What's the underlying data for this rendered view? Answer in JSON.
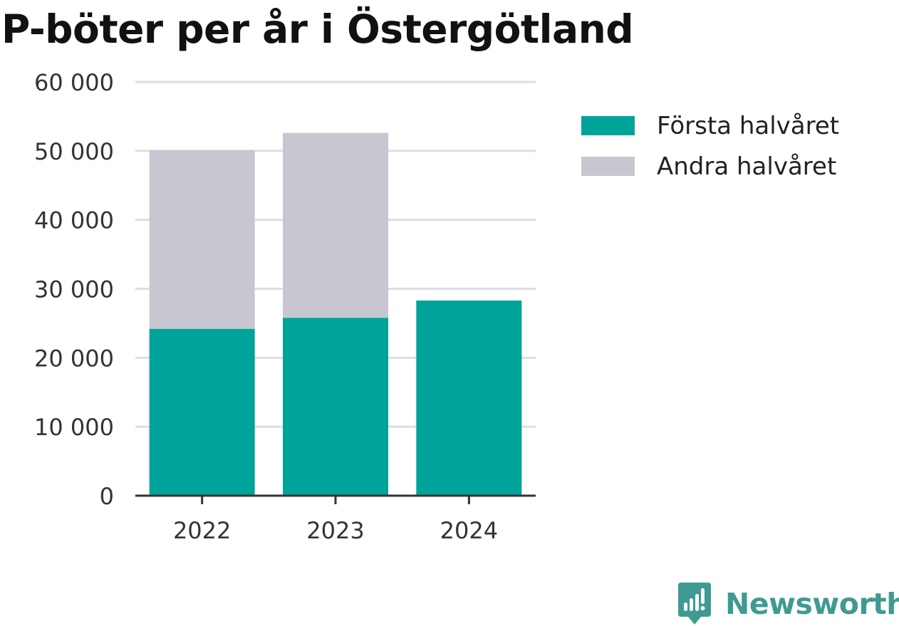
{
  "title": "P-böter per år i Östergötland",
  "brand": {
    "name": "Newsworthy",
    "logo_icon": "newsworthy-logo-icon",
    "color": "#3f9a92"
  },
  "chart_data": {
    "type": "bar",
    "stacked": true,
    "title": "P-böter per år i Östergötland",
    "xlabel": "",
    "ylabel": "",
    "categories": [
      "2022",
      "2023",
      "2024"
    ],
    "series": [
      {
        "name": "Första halvåret",
        "color": "#00a39a",
        "values": [
          24200,
          25800,
          28300
        ]
      },
      {
        "name": "Andra halvåret",
        "color": "#c8c7d1",
        "values": [
          25900,
          26800,
          0
        ]
      }
    ],
    "ylim": [
      0,
      60000
    ],
    "yticks": [
      0,
      10000,
      20000,
      30000,
      40000,
      50000,
      60000
    ],
    "ytick_labels": [
      "0",
      "10 000",
      "20 000",
      "30 000",
      "40 000",
      "50 000",
      "60 000"
    ],
    "grid": true,
    "legend_position": "right"
  }
}
